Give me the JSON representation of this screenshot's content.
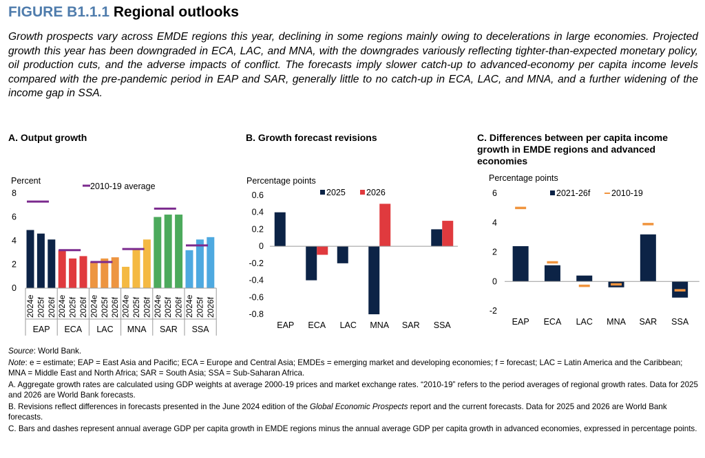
{
  "figure": {
    "number": "FIGURE B1.1.1",
    "title": "Regional outlooks",
    "lead": "Growth prospects vary across EMDE regions this year, declining in some regions mainly owing to decelerations in large economies. Projected growth this year has been downgraded in ECA, LAC, and MNA, with the downgrades variously reflecting tighter-than-expected monetary policy, oil production cuts, and the adverse impacts of conflict. The forecasts imply slower catch-up to advanced-economy per capita income levels compared with the pre-pandemic period in EAP and SAR, generally little to no catch-up in ECA, LAC, and MNA, and a further widening of the income gap in SSA."
  },
  "panels": {
    "a_title": "A. Output growth",
    "b_title": "B. Growth forecast revisions",
    "c_title": "C. Differences between per capita income growth in EMDE regions and advanced economies"
  },
  "colors": {
    "navy": "#0c2346",
    "red": "#e03a3e",
    "orange": "#ed9541",
    "yellow": "#f4b942",
    "green": "#4caa5c",
    "blue": "#4ea9e0",
    "purple": "#7b2a8e",
    "dash_orange": "#f0943e",
    "title_blue": "#4f7cac"
  },
  "chart_data": [
    {
      "type": "bar",
      "title": "A. Output growth",
      "ylabel": "Percent",
      "ylim": [
        0,
        8
      ],
      "yticks": [
        0,
        2,
        4,
        6,
        8
      ],
      "groups": [
        "EAP",
        "ECA",
        "LAC",
        "MNA",
        "SAR",
        "SSA"
      ],
      "subcategories": [
        "2024e",
        "2025f",
        "2026f"
      ],
      "values": [
        [
          4.9,
          4.6,
          4.1
        ],
        [
          3.2,
          2.5,
          2.7
        ],
        [
          2.2,
          2.5,
          2.6
        ],
        [
          1.8,
          3.3,
          4.1
        ],
        [
          6.0,
          6.2,
          6.2
        ],
        [
          3.2,
          4.1,
          4.3
        ]
      ],
      "average_label": "2010-19 average",
      "averages": [
        7.3,
        3.2,
        2.2,
        3.3,
        6.7,
        3.6
      ],
      "legend": "top-center"
    },
    {
      "type": "bar",
      "title": "B. Growth forecast revisions",
      "ylabel": "Percentage points",
      "ylim": [
        -0.8,
        0.6
      ],
      "yticks": [
        -0.8,
        -0.6,
        -0.4,
        -0.2,
        0,
        0.2,
        0.4,
        0.6
      ],
      "categories": [
        "EAP",
        "ECA",
        "LAC",
        "MNA",
        "SAR",
        "SSA"
      ],
      "series": [
        {
          "name": "2025",
          "values": [
            0.4,
            -0.4,
            -0.2,
            -0.8,
            0,
            0.2
          ]
        },
        {
          "name": "2026",
          "values": [
            0,
            -0.1,
            0,
            0.5,
            0,
            0.3
          ]
        }
      ],
      "legend": "top-center"
    },
    {
      "type": "bar",
      "title": "C. Differences between per capita income growth in EMDE regions and advanced economies",
      "ylabel": "Percentage points",
      "ylim": [
        -2,
        6
      ],
      "yticks": [
        -2,
        0,
        2,
        4,
        6
      ],
      "categories": [
        "EAP",
        "ECA",
        "LAC",
        "MNA",
        "SAR",
        "SSA"
      ],
      "series": [
        {
          "name": "2021-26f",
          "kind": "bar",
          "values": [
            2.4,
            1.1,
            0.4,
            -0.4,
            3.2,
            -1.1
          ]
        },
        {
          "name": "2010-19",
          "kind": "dash",
          "values": [
            5.0,
            1.3,
            -0.3,
            -0.2,
            3.9,
            -0.6
          ]
        }
      ],
      "legend": "top-center"
    }
  ],
  "notes": {
    "source_label": "Source",
    "source_text": ": World Bank.",
    "note_label": "Note",
    "note_text": ": e = estimate; EAP = East Asia and Pacific; ECA = Europe and Central Asia; EMDEs = emerging market and developing economies; f = forecast; LAC = Latin America and the Caribbean; MNA = Middle East and North Africa; SAR = South Asia; SSA = Sub-Saharan Africa.",
    "a": "A. Aggregate growth rates are calculated using GDP weights at average 2000-19 prices and market exchange rates. “2010-19” refers to the period averages of regional growth rates. Data for 2025 and 2026 are World Bank forecasts.",
    "b_pre": "B. Revisions reflect differences in forecasts presented in the June 2024 edition of the ",
    "b_italic": "Global Economic Prospects",
    "b_post": " report and the current forecasts. Data for 2025 and 2026 are World Bank forecasts.",
    "c": "C. Bars and dashes represent annual average GDP per capita growth in EMDE regions minus the annual average GDP per capita growth in advanced economies, expressed in percentage points."
  }
}
